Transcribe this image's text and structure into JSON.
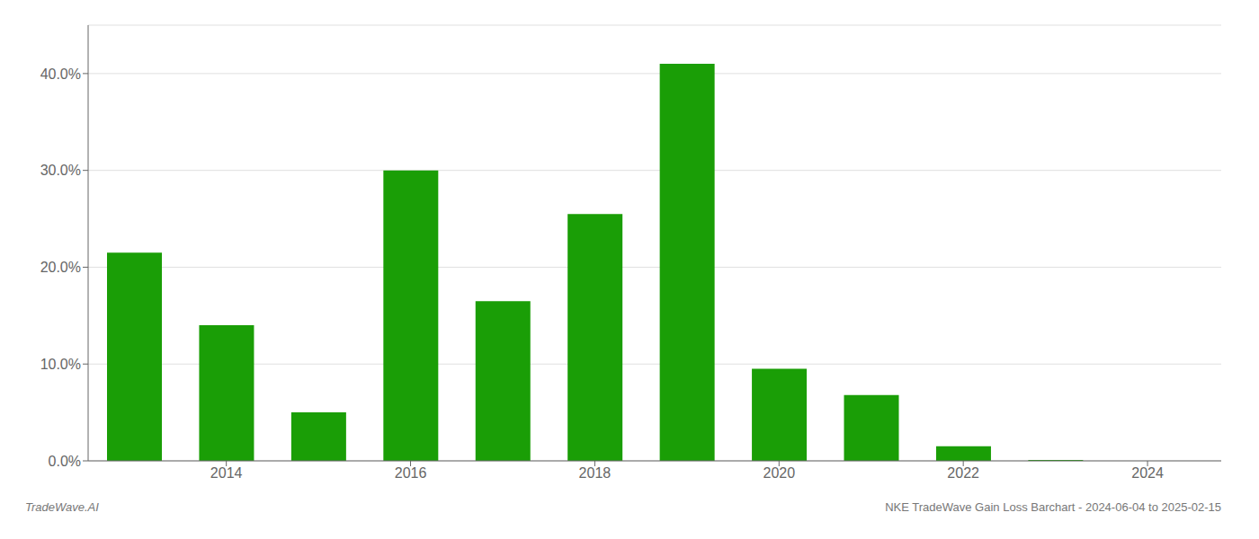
{
  "chart_data": {
    "type": "bar",
    "x": [
      2013,
      2014,
      2015,
      2016,
      2017,
      2018,
      2019,
      2020,
      2021,
      2022,
      2023
    ],
    "values": [
      0.215,
      0.14,
      0.05,
      0.3,
      0.165,
      0.255,
      0.41,
      0.095,
      0.068,
      0.015,
      0.001
    ],
    "color": "#1a9e06",
    "xlim": [
      2012.5,
      2024.8
    ],
    "xticks": [
      2014,
      2016,
      2018,
      2020,
      2022,
      2024
    ],
    "ylim": [
      0,
      0.45
    ],
    "yticks": [
      {
        "value": 0.0,
        "label": "0.0%"
      },
      {
        "value": 0.1,
        "label": "10.0%"
      },
      {
        "value": 0.2,
        "label": "20.0%"
      },
      {
        "value": 0.3,
        "label": "30.0%"
      },
      {
        "value": 0.4,
        "label": "40.0%"
      }
    ],
    "grid": true,
    "annotations": [
      "TradeWave.AI",
      "NKE TradeWave Gain Loss Barchart - 2024-06-04 to 2025-02-15"
    ]
  }
}
